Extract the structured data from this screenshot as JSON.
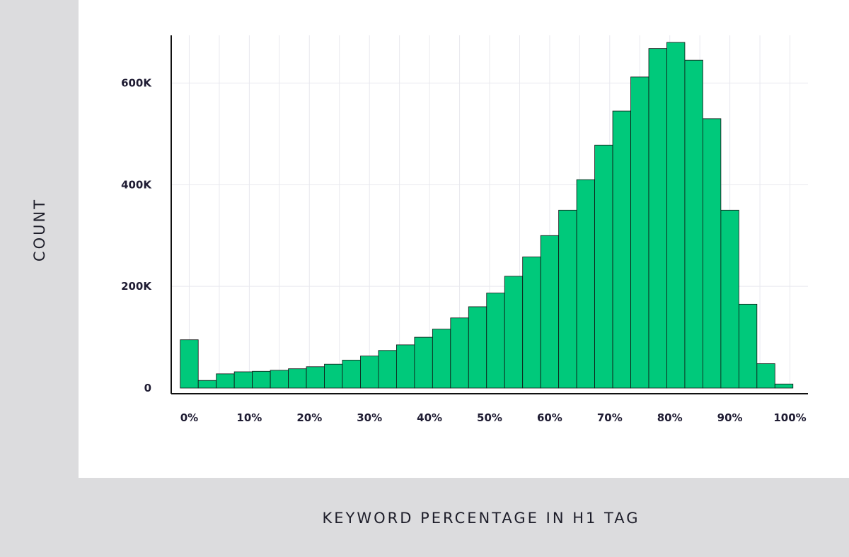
{
  "chart_data": {
    "type": "bar",
    "title": "",
    "xlabel": "KEYWORD PERCENTAGE IN H1 TAG",
    "ylabel": "COUNT",
    "x_tick_labels": [
      "0%",
      "10%",
      "20%",
      "30%",
      "40%",
      "50%",
      "60%",
      "70%",
      "80%",
      "90%",
      "100%"
    ],
    "y_tick_labels": [
      "0",
      "200K",
      "400K",
      "600K"
    ],
    "ylim": [
      0,
      680000
    ],
    "xlim": [
      -3,
      103
    ],
    "grid": true,
    "legend": "none",
    "bar_color": "#00c97b",
    "bar_edge_color": "#111111",
    "bin_width_pct": 3,
    "bins_start_pct": [
      -1.5,
      1.5,
      4.5,
      7.5,
      10.5,
      13.5,
      16.5,
      19.5,
      22.5,
      25.5,
      28.5,
      31.5,
      34.5,
      37.5,
      40.5,
      43.5,
      46.5,
      49.5,
      52.5,
      55.5,
      58.5,
      61.5,
      64.5,
      67.5,
      70.5,
      73.5,
      76.5,
      79.5,
      82.5,
      85.5,
      88.5,
      91.5,
      94.5,
      97.5
    ],
    "values": [
      95000,
      15000,
      28000,
      32000,
      33000,
      35000,
      38000,
      42000,
      47000,
      55000,
      63000,
      74000,
      85000,
      100000,
      116000,
      138000,
      160000,
      187000,
      220000,
      258000,
      300000,
      350000,
      410000,
      478000,
      545000,
      612000,
      668000,
      680000,
      645000,
      530000,
      350000,
      165000,
      48000,
      8000
    ]
  }
}
